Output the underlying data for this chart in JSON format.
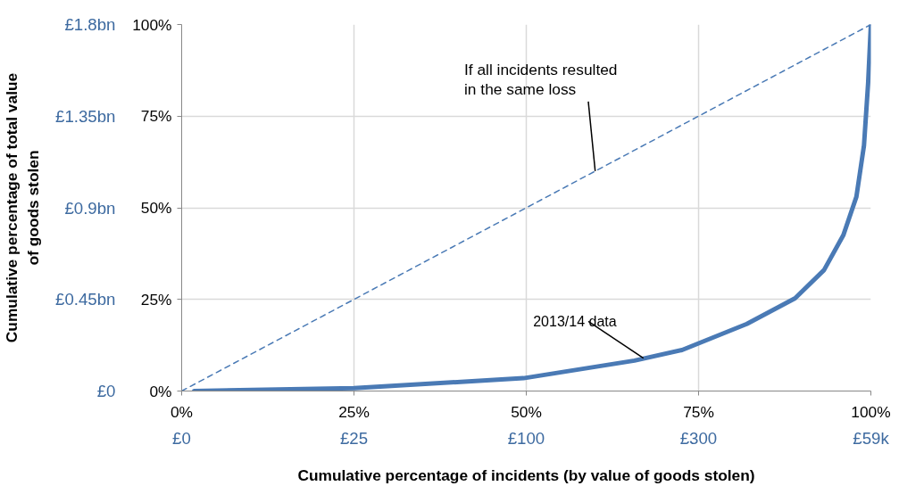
{
  "chart_data": {
    "type": "line",
    "xlabel": "Cumulative percentage of incidents (by value of goods stolen)",
    "y2label": "Cumulative percentage of total value\nof goods stolen",
    "xlim": [
      0,
      100
    ],
    "ylim": [
      0,
      100
    ],
    "xticks": [
      {
        "value": 0,
        "label": "0%"
      },
      {
        "value": 25,
        "label": "25%"
      },
      {
        "value": 50,
        "label": "50%"
      },
      {
        "value": 75,
        "label": "75%"
      },
      {
        "value": 100,
        "label": "100%"
      }
    ],
    "yticks": [
      {
        "value": 0,
        "label": "0%"
      },
      {
        "value": 25,
        "label": "25%"
      },
      {
        "value": 50,
        "label": "50%"
      },
      {
        "value": 75,
        "label": "75%"
      },
      {
        "value": 100,
        "label": "100%"
      }
    ],
    "y2lim": [
      0,
      1.8
    ],
    "y2ticks": [
      {
        "value": 0,
        "label": "£0"
      },
      {
        "value": 0.45,
        "label": "£0.45bn"
      },
      {
        "value": 0.9,
        "label": "£0.9bn"
      },
      {
        "value": 1.35,
        "label": "£1.35bn"
      },
      {
        "value": 1.8,
        "label": "£1.8bn"
      }
    ],
    "grid": true,
    "marker": "none",
    "series": [
      {
        "color": "#4a7ab5",
        "line_style": "dashed",
        "x": [
          0,
          100
        ],
        "values": [
          0,
          100
        ]
      },
      {
        "color": "#4a7ab5",
        "line_style": "solid",
        "x": [
          1.8,
          25,
          49.6,
          65.7,
          72.6,
          82,
          89,
          93.2,
          96,
          97.9,
          99,
          99.6,
          100
        ],
        "values": [
          0,
          0.8,
          3.5,
          8.3,
          11.2,
          18.3,
          25.3,
          33,
          42.5,
          53,
          67,
          84,
          100
        ]
      }
    ],
    "annotations": [
      {
        "text": "If all incidents resulted\nin the same loss",
        "x": 60,
        "y": 60
      },
      {
        "text": "2013/14 data",
        "x": 67,
        "y": 9
      },
      "£0",
      "£25",
      "£100",
      "£300",
      "£59k"
    ]
  }
}
